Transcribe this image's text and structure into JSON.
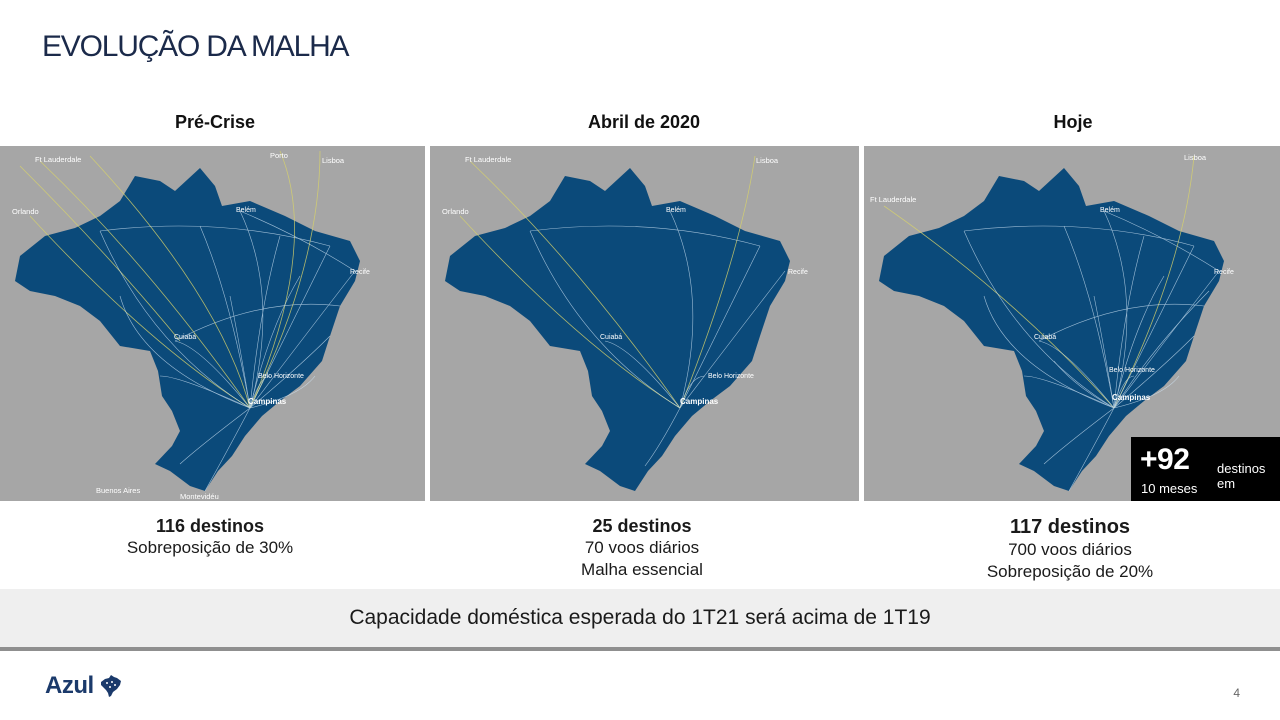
{
  "slide": {
    "title": "EVOLUÇÃO DA MALHA",
    "page_number": "4"
  },
  "panels": [
    {
      "heading": "Pré-Crise",
      "caption_strong": "116 destinos",
      "caption_lines": [
        "Sobreposição de 30%"
      ],
      "map_labels": {
        "ft_lauderdale": "Ft Lauderdale",
        "porto": "Porto",
        "lisboa": "Lisboa",
        "orlando": "Orlando",
        "buenos_aires": "Buenos Aires",
        "montevideu": "Montevidéu",
        "campinas": "Campinas",
        "recife": "Recife",
        "belem": "Belém",
        "cuiaba": "Cuiabá",
        "belo_horizonte": "Belo Horizonte"
      }
    },
    {
      "heading": "Abril de 2020",
      "caption_strong": "25 destinos",
      "caption_lines": [
        "70 voos diários",
        "Malha essencial"
      ],
      "map_labels": {
        "ft_lauderdale": "Ft Lauderdale",
        "lisboa": "Lisboa",
        "orlando": "Orlando",
        "campinas": "Campinas",
        "recife": "Recife",
        "belem": "Belém",
        "cuiaba": "Cuiabá",
        "belo_horizonte": "Belo Horizonte"
      }
    },
    {
      "heading": "Hoje",
      "caption_strong": "117 destinos",
      "caption_lines": [
        "700 voos diários",
        "Sobreposição de 20%"
      ],
      "map_labels": {
        "ft_lauderdale": "Ft Lauderdale",
        "lisboa": "Lisboa",
        "campinas": "Campinas",
        "recife": "Recife",
        "belem": "Belém",
        "cuiaba": "Cuiabá",
        "belo_horizonte": "Belo Horizonte"
      }
    }
  ],
  "badge": {
    "value": "+92",
    "text": "destinos em",
    "text_line2": "10 meses"
  },
  "banner": {
    "text": "Capacidade doméstica esperada do 1T21 será acima de 1T19"
  },
  "logo": {
    "text": "Azul"
  },
  "colors": {
    "map_background": "#a6a6a6",
    "country_fill": "#0b4a7a",
    "route_line": "#cfe4f5",
    "intl_route": "#d8d36a",
    "title_color": "#1b2a4a",
    "brand": "#1b3a6b"
  }
}
